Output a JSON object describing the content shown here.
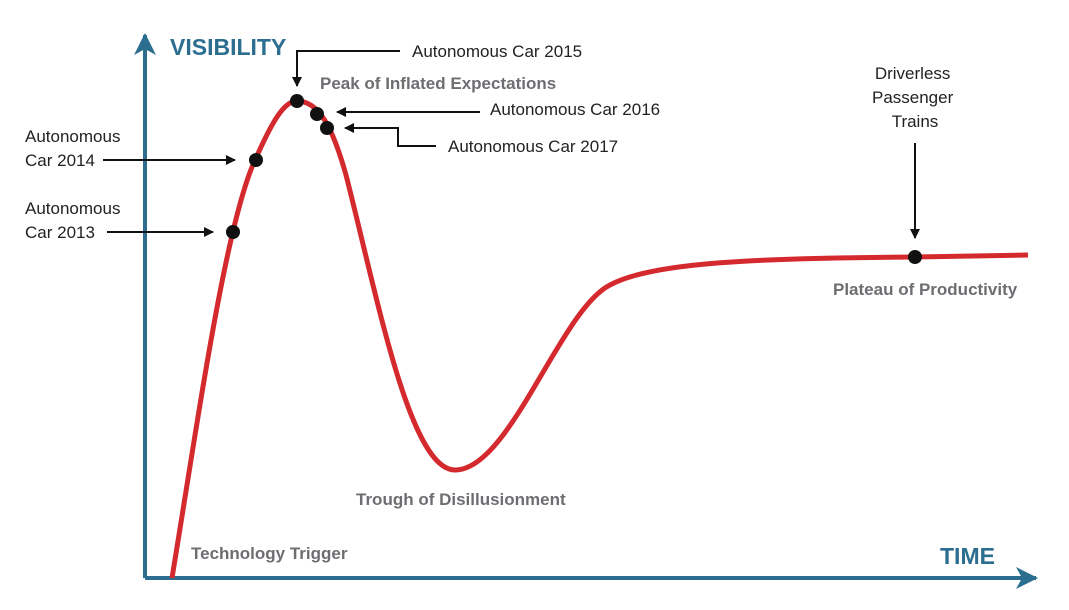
{
  "axes": {
    "y_label": "VISIBILITY",
    "x_label": "TIME"
  },
  "phases": [
    "Technology Trigger",
    "Peak of Inflated Expectations",
    "Trough of Disillusionment",
    "Plateau of Productivity"
  ],
  "annotations": [
    {
      "lines": [
        "Autonomous",
        "Car 2013"
      ]
    },
    {
      "lines": [
        "Autonomous",
        "Car 2014"
      ]
    },
    {
      "lines": [
        "Autonomous Car 2015"
      ]
    },
    {
      "lines": [
        "Autonomous Car 2016"
      ]
    },
    {
      "lines": [
        "Autonomous Car 2017"
      ]
    },
    {
      "lines": [
        "Driverless",
        "Passenger",
        "Trains"
      ]
    }
  ]
}
